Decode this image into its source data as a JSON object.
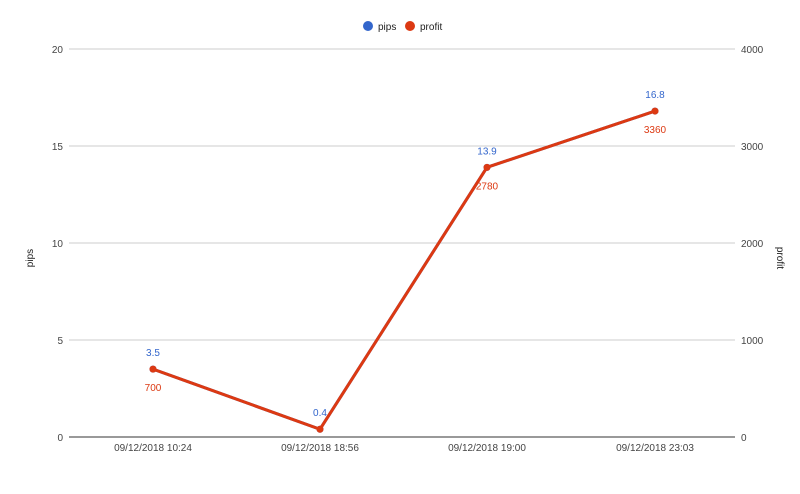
{
  "chart_data": {
    "type": "line",
    "categories": [
      "09/12/2018 10:24",
      "09/12/2018 18:56",
      "09/12/2018 19:00",
      "09/12/2018 23:03"
    ],
    "series": [
      {
        "name": "pips",
        "axis": "left",
        "color": "#3366cc",
        "values": [
          3.5,
          0.4,
          13.9,
          16.8
        ],
        "labels": [
          "3.5",
          "0.4",
          "13.9",
          "16.8"
        ]
      },
      {
        "name": "profit",
        "axis": "right",
        "color": "#dc3912",
        "values": [
          700,
          80,
          2780,
          3360
        ],
        "labels": [
          "700",
          "",
          "2780",
          "3360"
        ]
      }
    ],
    "ylabel": "pips",
    "ylabel_right": "profit",
    "ylim": [
      0,
      20
    ],
    "ylim_right": [
      0,
      4000
    ],
    "yticks": [
      "0",
      "5",
      "10",
      "15",
      "20"
    ],
    "yticks_right": [
      "0",
      "1000",
      "2000",
      "3000",
      "4000"
    ],
    "grid": true,
    "legend": "top"
  }
}
